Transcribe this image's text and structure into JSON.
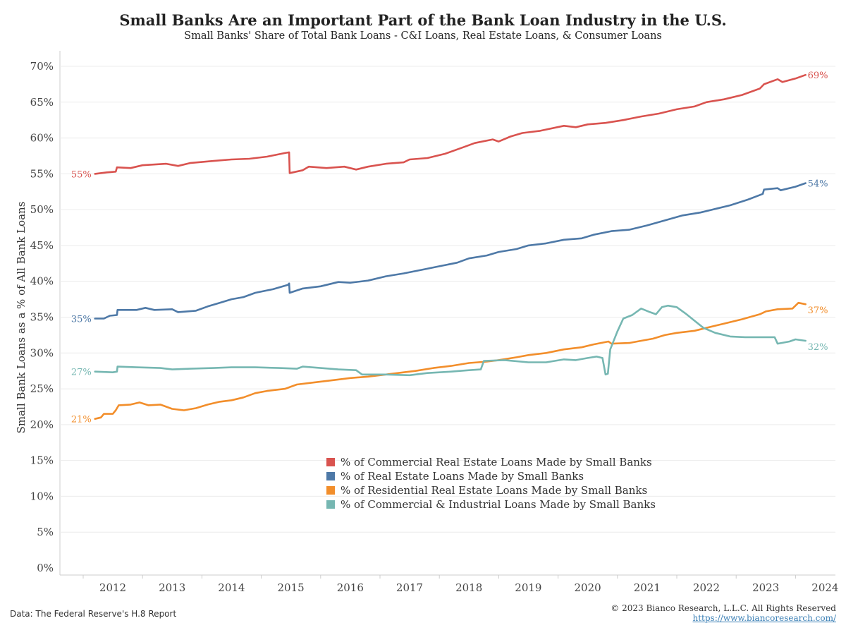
{
  "chart_data": {
    "type": "line",
    "title": "Small Banks Are an Important Part of the Bank Loan Industry in the U.S.",
    "subtitle": "Small Banks' Share of Total Bank Loans - C&I Loans, Real Estate Loans, & Consumer Loans",
    "ylabel": "Small Bank Loans as a % of All Bank Loans",
    "xlabel": "",
    "ylim": [
      0,
      70
    ],
    "xlim": [
      2011.3,
      2024.2
    ],
    "y_ticks": [
      "0%",
      "5%",
      "10%",
      "15%",
      "20%",
      "25%",
      "30%",
      "35%",
      "40%",
      "45%",
      "50%",
      "55%",
      "60%",
      "65%",
      "70%"
    ],
    "x_ticks": [
      "2012",
      "2013",
      "2014",
      "2015",
      "2016",
      "2017",
      "2018",
      "2019",
      "2020",
      "2021",
      "2022",
      "2023",
      "2024"
    ],
    "grid": true,
    "legend_position": "bottom-center",
    "series": [
      {
        "name": "% of Commercial Real Estate Loans Made by Small Banks",
        "color": "#d9534f",
        "start_label": "55%",
        "end_label": "69%",
        "points": [
          [
            2011.7,
            55.0
          ],
          [
            2011.9,
            55.2
          ],
          [
            2012.05,
            55.3
          ],
          [
            2012.07,
            55.9
          ],
          [
            2012.3,
            55.8
          ],
          [
            2012.5,
            56.2
          ],
          [
            2012.9,
            56.4
          ],
          [
            2013.1,
            56.1
          ],
          [
            2013.3,
            56.5
          ],
          [
            2013.7,
            56.8
          ],
          [
            2014.0,
            57.0
          ],
          [
            2014.3,
            57.1
          ],
          [
            2014.6,
            57.4
          ],
          [
            2014.9,
            57.9
          ],
          [
            2014.97,
            58.0
          ],
          [
            2014.98,
            55.1
          ],
          [
            2015.2,
            55.5
          ],
          [
            2015.3,
            56.0
          ],
          [
            2015.6,
            55.8
          ],
          [
            2015.9,
            56.0
          ],
          [
            2016.1,
            55.6
          ],
          [
            2016.3,
            56.0
          ],
          [
            2016.6,
            56.4
          ],
          [
            2016.9,
            56.6
          ],
          [
            2017.0,
            57.0
          ],
          [
            2017.3,
            57.2
          ],
          [
            2017.6,
            57.8
          ],
          [
            2017.9,
            58.7
          ],
          [
            2018.1,
            59.3
          ],
          [
            2018.4,
            59.8
          ],
          [
            2018.5,
            59.5
          ],
          [
            2018.7,
            60.2
          ],
          [
            2018.9,
            60.7
          ],
          [
            2019.2,
            61.0
          ],
          [
            2019.6,
            61.7
          ],
          [
            2019.8,
            61.5
          ],
          [
            2020.0,
            61.9
          ],
          [
            2020.3,
            62.1
          ],
          [
            2020.6,
            62.5
          ],
          [
            2020.9,
            63.0
          ],
          [
            2021.2,
            63.4
          ],
          [
            2021.5,
            64.0
          ],
          [
            2021.8,
            64.4
          ],
          [
            2022.0,
            65.0
          ],
          [
            2022.3,
            65.4
          ],
          [
            2022.6,
            66.0
          ],
          [
            2022.9,
            66.9
          ],
          [
            2022.97,
            67.5
          ],
          [
            2023.2,
            68.2
          ],
          [
            2023.28,
            67.8
          ],
          [
            2023.5,
            68.3
          ],
          [
            2023.67,
            68.8
          ]
        ]
      },
      {
        "name": "% of Real Estate Loans Made by Small Banks",
        "color": "#4e79a7",
        "start_label": "35%",
        "end_label": "54%",
        "points": [
          [
            2011.7,
            34.8
          ],
          [
            2011.85,
            34.8
          ],
          [
            2011.95,
            35.2
          ],
          [
            2012.07,
            35.3
          ],
          [
            2012.08,
            36.0
          ],
          [
            2012.4,
            36.0
          ],
          [
            2012.55,
            36.3
          ],
          [
            2012.7,
            36.0
          ],
          [
            2013.0,
            36.1
          ],
          [
            2013.1,
            35.7
          ],
          [
            2013.4,
            35.9
          ],
          [
            2013.6,
            36.5
          ],
          [
            2013.8,
            37.0
          ],
          [
            2014.0,
            37.5
          ],
          [
            2014.2,
            37.8
          ],
          [
            2014.4,
            38.4
          ],
          [
            2014.7,
            38.9
          ],
          [
            2014.95,
            39.5
          ],
          [
            2014.97,
            39.7
          ],
          [
            2014.98,
            38.4
          ],
          [
            2015.2,
            39.0
          ],
          [
            2015.5,
            39.3
          ],
          [
            2015.8,
            39.9
          ],
          [
            2016.0,
            39.8
          ],
          [
            2016.3,
            40.1
          ],
          [
            2016.6,
            40.7
          ],
          [
            2016.9,
            41.1
          ],
          [
            2017.2,
            41.6
          ],
          [
            2017.5,
            42.1
          ],
          [
            2017.8,
            42.6
          ],
          [
            2018.0,
            43.2
          ],
          [
            2018.3,
            43.6
          ],
          [
            2018.5,
            44.1
          ],
          [
            2018.8,
            44.5
          ],
          [
            2019.0,
            45.0
          ],
          [
            2019.3,
            45.3
          ],
          [
            2019.6,
            45.8
          ],
          [
            2019.9,
            46.0
          ],
          [
            2020.1,
            46.5
          ],
          [
            2020.4,
            47.0
          ],
          [
            2020.7,
            47.2
          ],
          [
            2021.0,
            47.8
          ],
          [
            2021.3,
            48.5
          ],
          [
            2021.6,
            49.2
          ],
          [
            2021.9,
            49.6
          ],
          [
            2022.1,
            50.0
          ],
          [
            2022.4,
            50.6
          ],
          [
            2022.7,
            51.4
          ],
          [
            2022.95,
            52.2
          ],
          [
            2022.97,
            52.8
          ],
          [
            2023.2,
            53.0
          ],
          [
            2023.25,
            52.7
          ],
          [
            2023.5,
            53.2
          ],
          [
            2023.67,
            53.7
          ]
        ]
      },
      {
        "name": "% of Residential Real Estate Loans Made by Small Banks",
        "color": "#f28e2b",
        "start_label": "21%",
        "end_label": "37%",
        "points": [
          [
            2011.7,
            20.8
          ],
          [
            2011.8,
            21.0
          ],
          [
            2011.85,
            21.5
          ],
          [
            2012.0,
            21.5
          ],
          [
            2012.05,
            22.0
          ],
          [
            2012.1,
            22.7
          ],
          [
            2012.3,
            22.8
          ],
          [
            2012.45,
            23.1
          ],
          [
            2012.6,
            22.7
          ],
          [
            2012.8,
            22.8
          ],
          [
            2013.0,
            22.2
          ],
          [
            2013.2,
            22.0
          ],
          [
            2013.4,
            22.3
          ],
          [
            2013.6,
            22.8
          ],
          [
            2013.8,
            23.2
          ],
          [
            2014.0,
            23.4
          ],
          [
            2014.2,
            23.8
          ],
          [
            2014.4,
            24.4
          ],
          [
            2014.6,
            24.7
          ],
          [
            2014.9,
            25.0
          ],
          [
            2015.1,
            25.6
          ],
          [
            2015.4,
            25.9
          ],
          [
            2015.7,
            26.2
          ],
          [
            2016.0,
            26.5
          ],
          [
            2016.3,
            26.7
          ],
          [
            2016.6,
            27.0
          ],
          [
            2016.9,
            27.3
          ],
          [
            2017.1,
            27.5
          ],
          [
            2017.4,
            27.9
          ],
          [
            2017.7,
            28.2
          ],
          [
            2018.0,
            28.6
          ],
          [
            2018.3,
            28.8
          ],
          [
            2018.5,
            29.0
          ],
          [
            2018.8,
            29.4
          ],
          [
            2019.0,
            29.7
          ],
          [
            2019.3,
            30.0
          ],
          [
            2019.6,
            30.5
          ],
          [
            2019.9,
            30.8
          ],
          [
            2020.1,
            31.2
          ],
          [
            2020.35,
            31.6
          ],
          [
            2020.4,
            31.3
          ],
          [
            2020.7,
            31.4
          ],
          [
            2020.9,
            31.7
          ],
          [
            2021.1,
            32.0
          ],
          [
            2021.3,
            32.5
          ],
          [
            2021.5,
            32.8
          ],
          [
            2021.8,
            33.1
          ],
          [
            2022.0,
            33.5
          ],
          [
            2022.3,
            34.1
          ],
          [
            2022.6,
            34.7
          ],
          [
            2022.9,
            35.4
          ],
          [
            2023.0,
            35.8
          ],
          [
            2023.2,
            36.1
          ],
          [
            2023.45,
            36.2
          ],
          [
            2023.55,
            37.0
          ],
          [
            2023.67,
            36.8
          ]
        ]
      },
      {
        "name": "% of Commercial & Industrial Loans Made by Small Banks",
        "color": "#76b7b2",
        "start_label": "27%",
        "end_label": "32%",
        "points": [
          [
            2011.7,
            27.4
          ],
          [
            2012.0,
            27.3
          ],
          [
            2012.07,
            27.4
          ],
          [
            2012.08,
            28.1
          ],
          [
            2012.4,
            28.0
          ],
          [
            2012.8,
            27.9
          ],
          [
            2013.0,
            27.7
          ],
          [
            2013.3,
            27.8
          ],
          [
            2013.7,
            27.9
          ],
          [
            2014.0,
            28.0
          ],
          [
            2014.4,
            28.0
          ],
          [
            2014.8,
            27.9
          ],
          [
            2015.1,
            27.8
          ],
          [
            2015.2,
            28.1
          ],
          [
            2015.5,
            27.9
          ],
          [
            2015.8,
            27.7
          ],
          [
            2016.1,
            27.6
          ],
          [
            2016.2,
            27.0
          ],
          [
            2016.6,
            27.0
          ],
          [
            2017.0,
            26.9
          ],
          [
            2017.3,
            27.2
          ],
          [
            2017.7,
            27.4
          ],
          [
            2018.0,
            27.6
          ],
          [
            2018.2,
            27.7
          ],
          [
            2018.25,
            28.9
          ],
          [
            2018.6,
            29.0
          ],
          [
            2019.0,
            28.7
          ],
          [
            2019.3,
            28.7
          ],
          [
            2019.6,
            29.1
          ],
          [
            2019.8,
            29.0
          ],
          [
            2020.0,
            29.3
          ],
          [
            2020.15,
            29.5
          ],
          [
            2020.25,
            29.3
          ],
          [
            2020.3,
            27.0
          ],
          [
            2020.34,
            27.1
          ],
          [
            2020.38,
            30.5
          ],
          [
            2020.5,
            33.0
          ],
          [
            2020.6,
            34.8
          ],
          [
            2020.75,
            35.3
          ],
          [
            2020.9,
            36.2
          ],
          [
            2021.05,
            35.7
          ],
          [
            2021.15,
            35.4
          ],
          [
            2021.25,
            36.4
          ],
          [
            2021.35,
            36.6
          ],
          [
            2021.5,
            36.4
          ],
          [
            2021.65,
            35.5
          ],
          [
            2021.8,
            34.5
          ],
          [
            2021.95,
            33.5
          ],
          [
            2022.15,
            32.8
          ],
          [
            2022.4,
            32.3
          ],
          [
            2022.65,
            32.2
          ],
          [
            2022.9,
            32.2
          ],
          [
            2023.15,
            32.2
          ],
          [
            2023.2,
            31.3
          ],
          [
            2023.4,
            31.6
          ],
          [
            2023.5,
            31.9
          ],
          [
            2023.67,
            31.7
          ]
        ]
      }
    ]
  },
  "footer": {
    "source": "Data: The Federal Reserve's H.8 Report",
    "copyright": "© 2023 Bianco Research, L.L.C. All Rights Reserved",
    "url": "https://www.biancoresearch.com/"
  }
}
